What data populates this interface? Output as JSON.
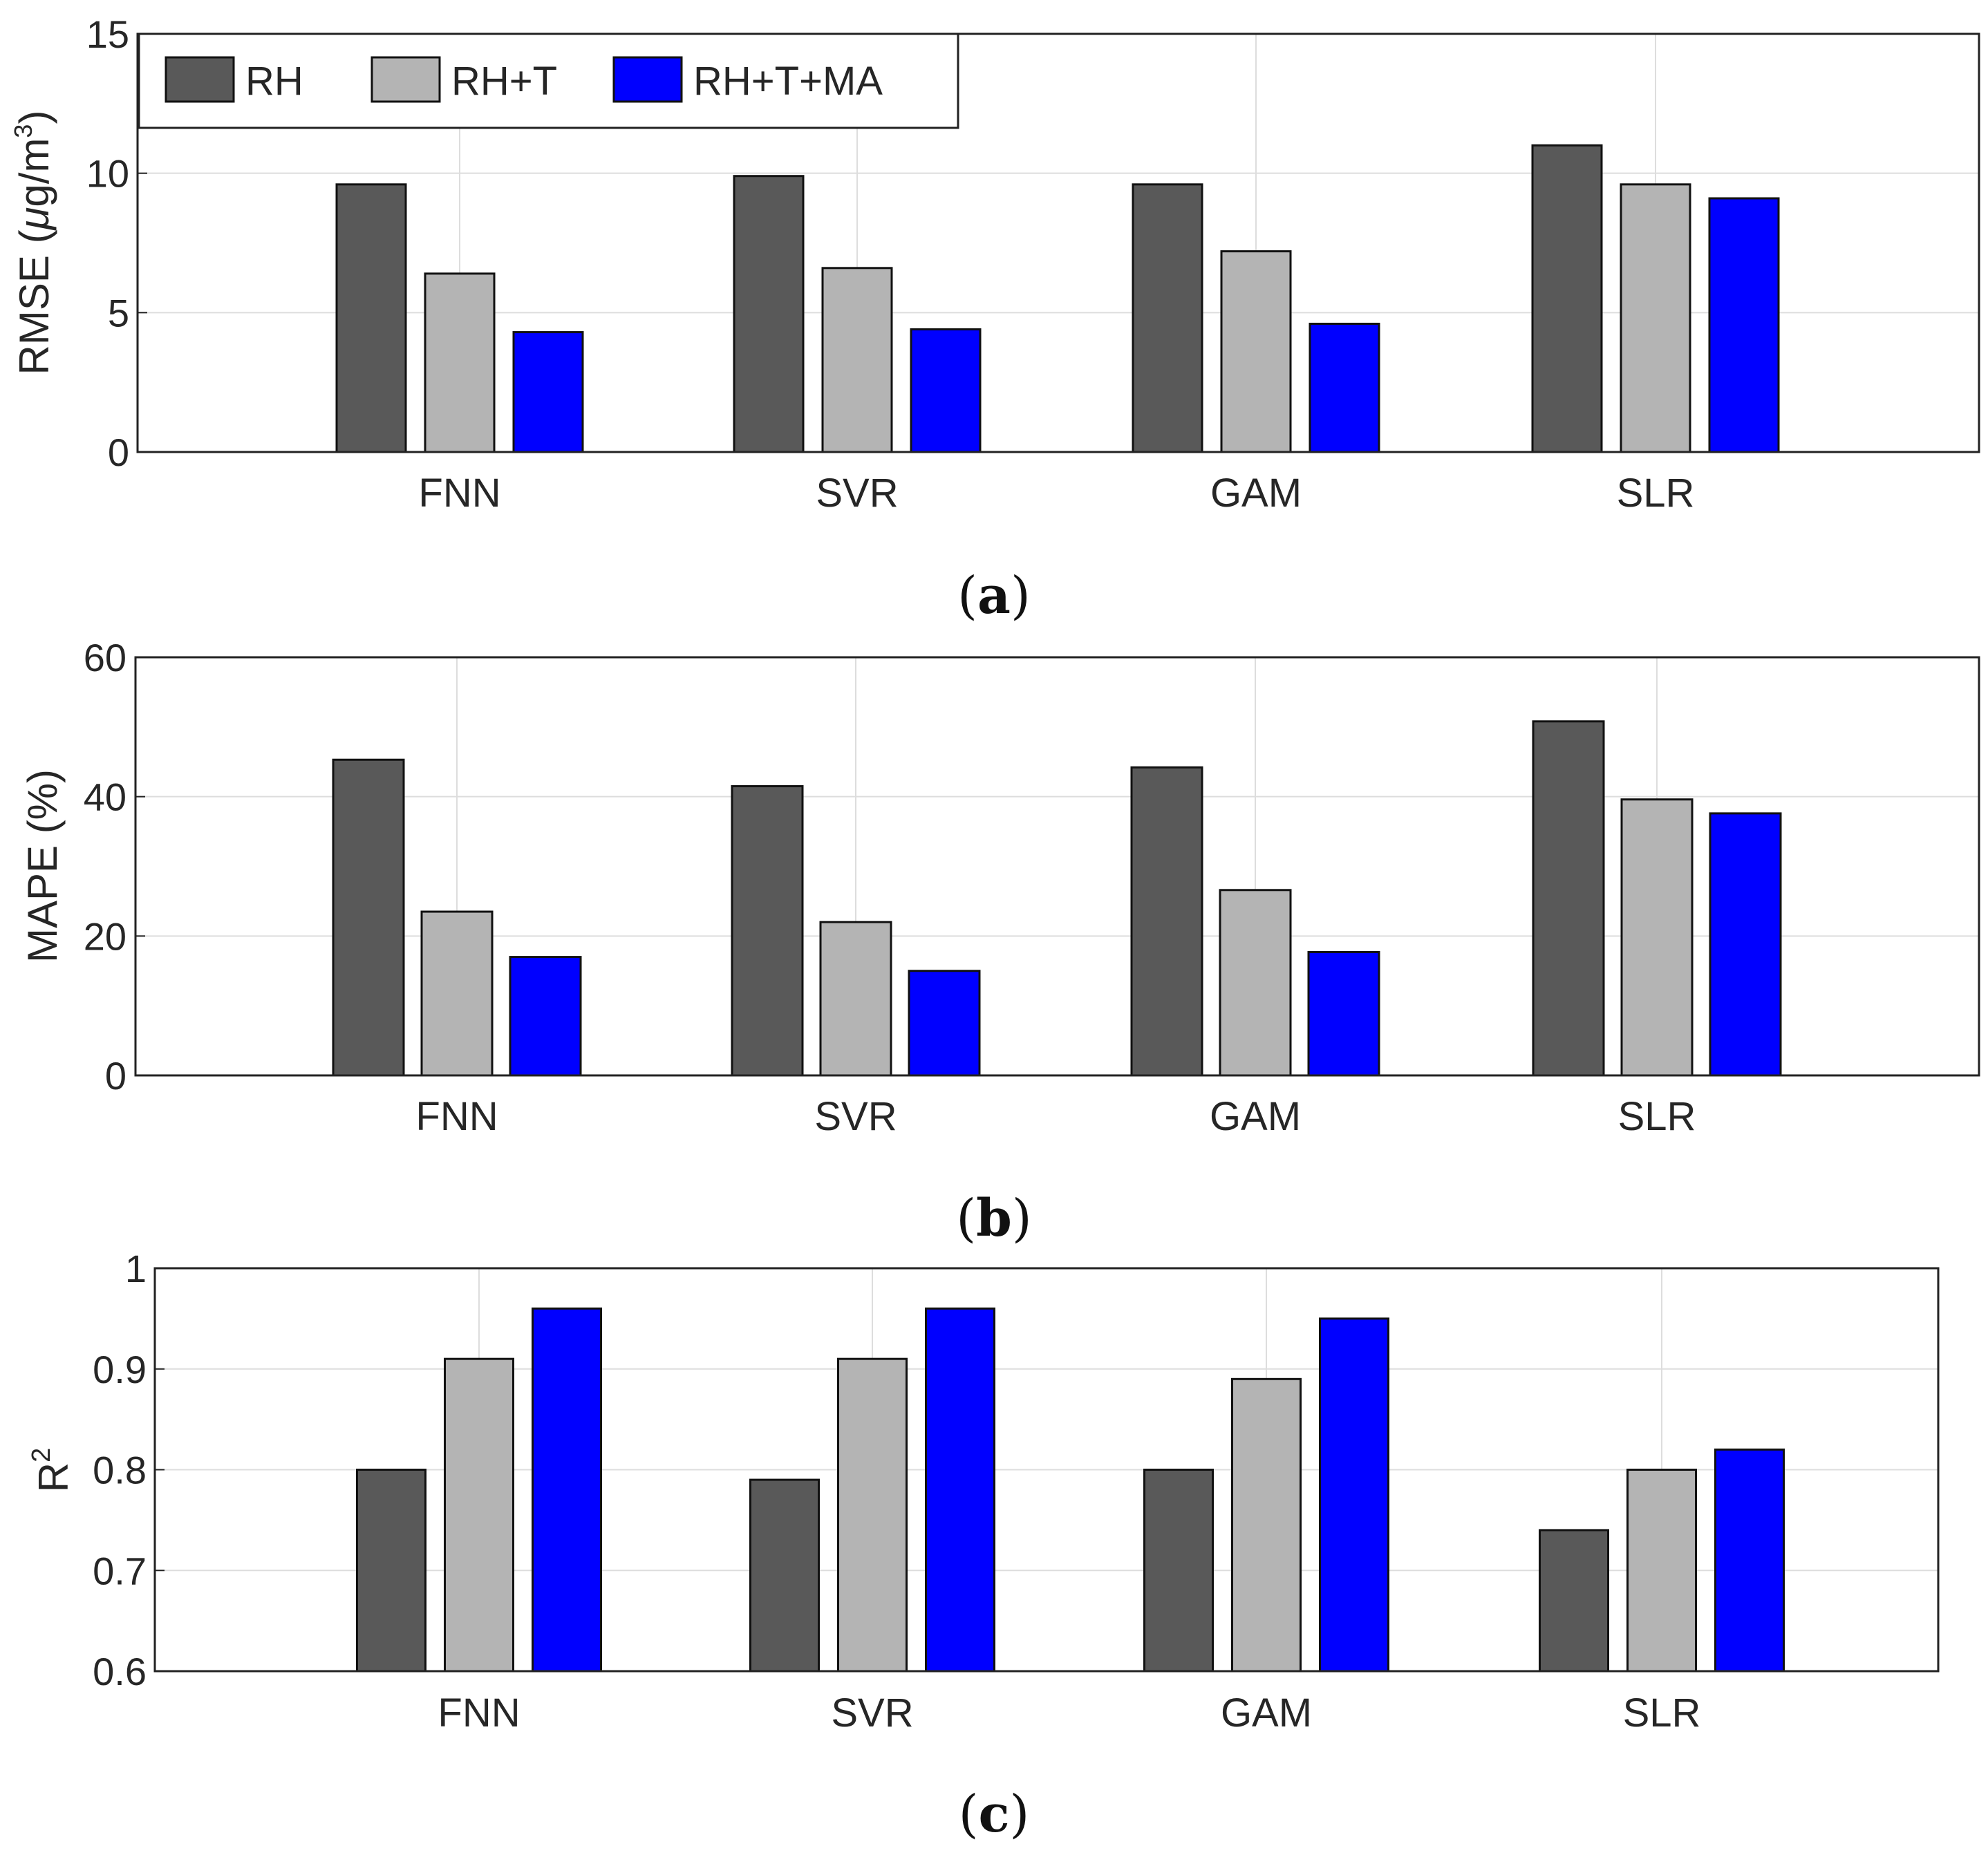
{
  "colors": {
    "RH": "#595959",
    "RH+T": "#b4b4b4",
    "RH+T+MA": "#0000ff",
    "grid": "#dddddd",
    "axis": "#222222",
    "text": "#262626"
  },
  "legend": {
    "placement": "top-left",
    "entries": [
      "RH",
      "RH+T",
      "RH+T+MA"
    ]
  },
  "captions": [
    {
      "open": "(",
      "letter": "a",
      "close": ")"
    },
    {
      "open": "(",
      "letter": "b",
      "close": ")"
    },
    {
      "open": "(",
      "letter": "c",
      "close": ")"
    }
  ],
  "chart_data": [
    {
      "type": "bar",
      "panel": "a",
      "ylabel": "RMSE (μg/m³)",
      "ylabel_main": "RMSE (",
      "ylabel_unit_mu": "μ",
      "ylabel_unit_rest": "g/m",
      "ylabel_sup": "3",
      "ylabel_close": ")",
      "categories": [
        "FNN",
        "SVR",
        "GAM",
        "SLR"
      ],
      "ylim": [
        0,
        15
      ],
      "yticks": [
        0,
        5,
        10,
        15
      ],
      "ytick_labels": [
        "0",
        "5",
        "10",
        "15"
      ],
      "grid": true,
      "series": [
        {
          "name": "RH",
          "values": [
            9.6,
            9.9,
            9.6,
            11.0
          ]
        },
        {
          "name": "RH+T",
          "values": [
            6.4,
            6.6,
            7.2,
            9.6
          ]
        },
        {
          "name": "RH+T+MA",
          "values": [
            4.3,
            4.4,
            4.6,
            9.1
          ]
        }
      ]
    },
    {
      "type": "bar",
      "panel": "b",
      "ylabel": "MAPE (%)",
      "categories": [
        "FNN",
        "SVR",
        "GAM",
        "SLR"
      ],
      "ylim": [
        0,
        60
      ],
      "yticks": [
        0,
        20,
        40,
        60
      ],
      "ytick_labels": [
        "0",
        "20",
        "40",
        "60"
      ],
      "grid": true,
      "series": [
        {
          "name": "RH",
          "values": [
            45.3,
            41.5,
            44.2,
            50.8
          ]
        },
        {
          "name": "RH+T",
          "values": [
            23.5,
            22.0,
            26.6,
            39.6
          ]
        },
        {
          "name": "RH+T+MA",
          "values": [
            17.0,
            15.0,
            17.7,
            37.6
          ]
        }
      ]
    },
    {
      "type": "bar",
      "panel": "c",
      "ylabel": "R²",
      "ylabel_main": "R",
      "ylabel_sup": "2",
      "categories": [
        "FNN",
        "SVR",
        "GAM",
        "SLR"
      ],
      "ylim": [
        0.6,
        1.0
      ],
      "yticks": [
        0.6,
        0.7,
        0.8,
        0.9,
        1.0
      ],
      "ytick_labels": [
        "0.6",
        "0.7",
        "0.8",
        "0.9",
        "1"
      ],
      "grid": true,
      "series": [
        {
          "name": "RH",
          "values": [
            0.8,
            0.79,
            0.8,
            0.74
          ]
        },
        {
          "name": "RH+T",
          "values": [
            0.91,
            0.91,
            0.89,
            0.8
          ]
        },
        {
          "name": "RH+T+MA",
          "values": [
            0.96,
            0.96,
            0.95,
            0.82
          ]
        }
      ]
    }
  ]
}
